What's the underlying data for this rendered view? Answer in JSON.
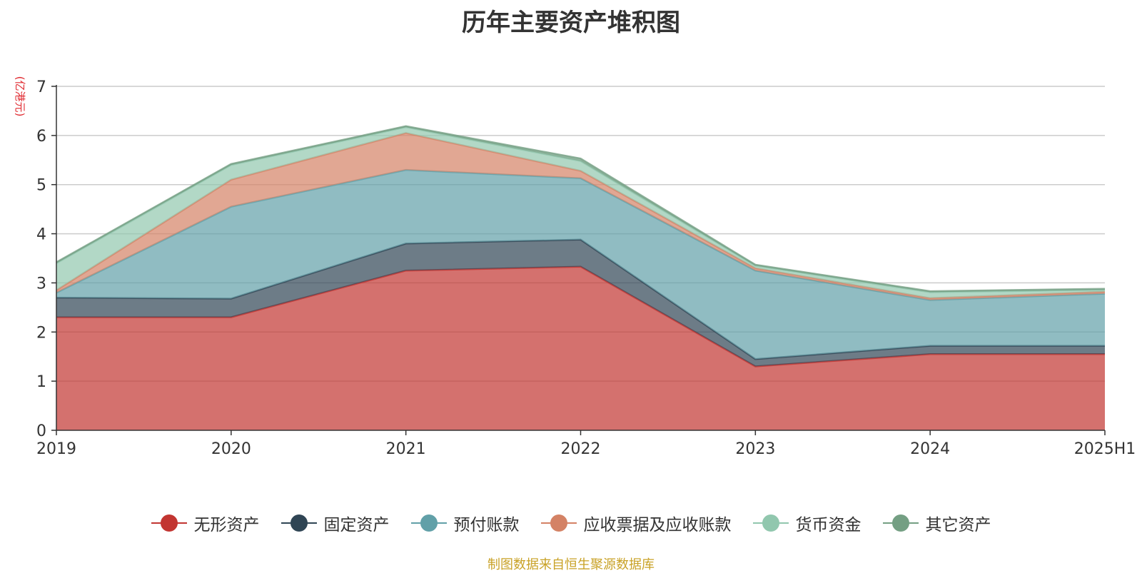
{
  "chart_data": {
    "type": "area",
    "stacked": true,
    "title": "历年主要资产堆积图",
    "y_unit": "(亿港元)",
    "categories": [
      "2019",
      "2020",
      "2021",
      "2022",
      "2023",
      "2024",
      "2025H1"
    ],
    "ylim": [
      0,
      7
    ],
    "yticks": [
      0,
      1,
      2,
      3,
      4,
      5,
      6,
      7
    ],
    "grid": true,
    "legend_position": "bottom",
    "series": [
      {
        "name": "无形资产",
        "color": "#c23531",
        "values": [
          2.3,
          2.3,
          3.25,
          3.33,
          1.3,
          1.55,
          1.55
        ]
      },
      {
        "name": "固定资产",
        "color": "#2f4554",
        "values": [
          0.4,
          0.38,
          0.55,
          0.55,
          0.15,
          0.17,
          0.17
        ]
      },
      {
        "name": "预付账款",
        "color": "#61a0a8",
        "values": [
          0.1,
          1.87,
          1.5,
          1.25,
          1.8,
          0.93,
          1.06
        ]
      },
      {
        "name": "应收票据及应收账款",
        "color": "#d48265",
        "values": [
          0.05,
          0.55,
          0.75,
          0.15,
          0.05,
          0.04,
          0.04
        ]
      },
      {
        "name": "货币资金",
        "color": "#91c7ae",
        "values": [
          0.55,
          0.3,
          0.12,
          0.2,
          0.05,
          0.12,
          0.04
        ]
      },
      {
        "name": "其它资产",
        "color": "#749f83",
        "values": [
          0.02,
          0.02,
          0.02,
          0.05,
          0.02,
          0.02,
          0.02
        ]
      }
    ]
  },
  "footer": {
    "source": "制图数据来自恒生聚源数据库"
  }
}
